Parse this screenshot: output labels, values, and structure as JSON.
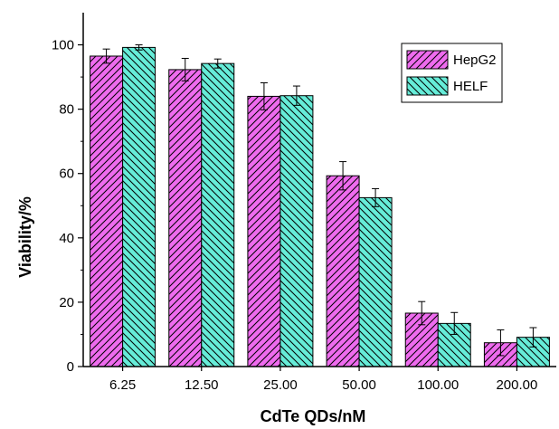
{
  "chart_data": {
    "type": "bar",
    "title": "",
    "xlabel": "CdTe QDs/nM",
    "ylabel": "Viability/%",
    "categories": [
      "6.25",
      "12.50",
      "25.00",
      "50.00",
      "100.00",
      "200.00"
    ],
    "ylim": [
      0,
      110
    ],
    "yticks": [
      0,
      20,
      40,
      60,
      80,
      100
    ],
    "grid": false,
    "legend_position": "top-right",
    "series": [
      {
        "name": "HepG2",
        "values": [
          96.5,
          92.3,
          84.0,
          59.3,
          16.6,
          7.4
        ],
        "errors": [
          2.2,
          3.5,
          4.2,
          4.4,
          3.6,
          4.0
        ],
        "color": "#ee6bee",
        "hatch": "forward-diagonal"
      },
      {
        "name": "HELF",
        "values": [
          99.2,
          94.2,
          84.2,
          52.5,
          13.4,
          9.1
        ],
        "errors": [
          0.8,
          1.4,
          3.0,
          2.8,
          3.4,
          3.0
        ],
        "color": "#66ecd8",
        "hatch": "back-diagonal"
      }
    ]
  }
}
